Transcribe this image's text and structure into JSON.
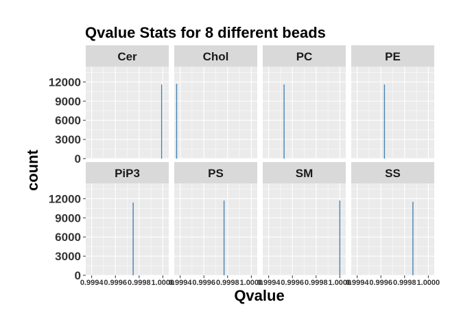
{
  "chart_data": {
    "type": "bar",
    "title": "Qvalue Stats for 8 different beads",
    "xlabel": "Qvalue",
    "ylabel": "count",
    "xlim": [
      0.99935,
      1.00005
    ],
    "ylim": [
      0,
      14400
    ],
    "y_ticks": [
      0,
      3000,
      6000,
      9000,
      12000
    ],
    "y_tick_labels": [
      "0",
      "3000",
      "6000",
      "9000",
      "12000"
    ],
    "x_ticks": [
      0.9994,
      0.9996,
      0.9998,
      1.0
    ],
    "x_tick_labels": [
      "0.9994",
      "0.9996",
      "0.9998",
      "1.0000"
    ],
    "grid": true,
    "bar_color": "#4682B4",
    "panel_bg": "#EBEBEB",
    "strip_bg": "#D9D9D9",
    "facets": [
      {
        "name": "Cer",
        "bins": [
          {
            "x": 0.99999,
            "count": 11600
          }
        ]
      },
      {
        "name": "Chol",
        "bins": [
          {
            "x": 0.99937,
            "count": 11700
          }
        ]
      },
      {
        "name": "PC",
        "bins": [
          {
            "x": 0.99953,
            "count": 11600
          }
        ]
      },
      {
        "name": "PE",
        "bins": [
          {
            "x": 0.99963,
            "count": 11600
          }
        ]
      },
      {
        "name": "PiP3",
        "bins": [
          {
            "x": 0.99975,
            "count": 11400
          }
        ]
      },
      {
        "name": "PS",
        "bins": [
          {
            "x": 0.99977,
            "count": 11700
          }
        ]
      },
      {
        "name": "SM",
        "bins": [
          {
            "x": 1.0,
            "count": 11700
          }
        ]
      },
      {
        "name": "SS",
        "bins": [
          {
            "x": 0.99987,
            "count": 11500
          }
        ]
      }
    ]
  }
}
